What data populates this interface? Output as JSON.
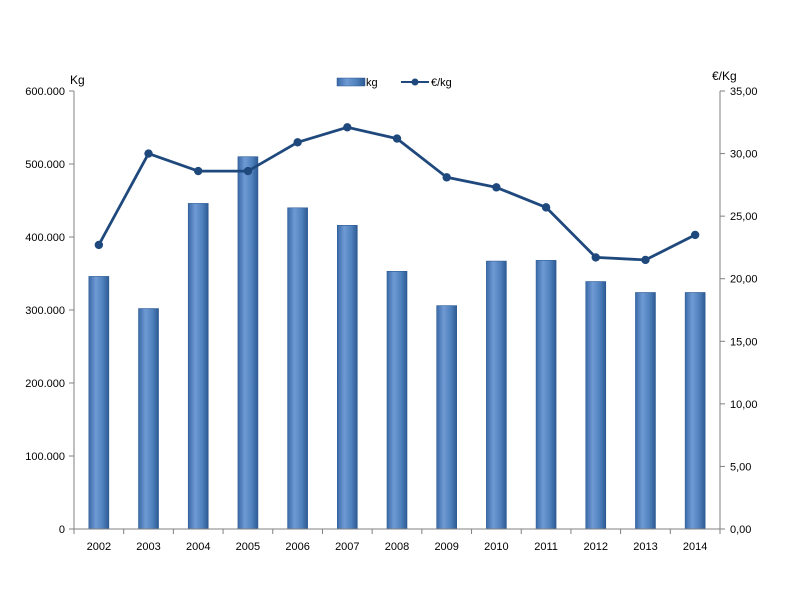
{
  "chart_data": {
    "type": "bar",
    "categories": [
      "2002",
      "2003",
      "2004",
      "2005",
      "2006",
      "2007",
      "2008",
      "2009",
      "2010",
      "2011",
      "2012",
      "2013",
      "2014"
    ],
    "series": [
      {
        "name": "kg",
        "type": "bar",
        "axis": "left",
        "values": [
          346000,
          302000,
          446000,
          510000,
          440000,
          416000,
          353000,
          306000,
          367000,
          368000,
          339000,
          324000,
          324000
        ]
      },
      {
        "name": "€/kg",
        "type": "line",
        "axis": "right",
        "values": [
          22.7,
          30.0,
          28.6,
          28.6,
          30.9,
          32.1,
          31.2,
          28.1,
          27.3,
          25.7,
          21.7,
          21.5,
          23.5
        ]
      }
    ],
    "ylabel_left": "Kg",
    "ylabel_right": "€/Kg",
    "ylim_left": [
      0,
      600000
    ],
    "ylim_right": [
      0,
      35
    ],
    "yticks_left": [
      "0",
      "100.000",
      "200.000",
      "300.000",
      "400.000",
      "500.000",
      "600.000"
    ],
    "yticks_right": [
      "0,00",
      "5,00",
      "10,00",
      "15,00",
      "20,00",
      "25,00",
      "30,00",
      "35,00"
    ],
    "grid": false,
    "legend": "top-center",
    "colors": {
      "bar": "#4f81bd",
      "bar_dark": "#2d5a93",
      "line": "#1f497d"
    }
  }
}
